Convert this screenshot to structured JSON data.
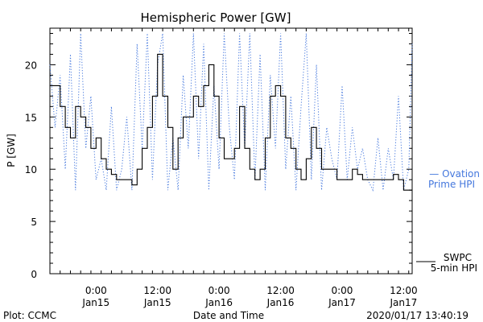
{
  "chart_data": {
    "type": "line",
    "title": "Hemispheric Power [GW]",
    "xlabel": "Date and Time",
    "ylabel": "P [GW]",
    "ylim": [
      0,
      23.5
    ],
    "xlim": [
      "2020-01-14 15:00",
      "2020-01-17 13:40"
    ],
    "yticks": [
      0,
      5,
      10,
      15,
      20
    ],
    "xticks": [
      {
        "x": "2020-01-15 00:00",
        "time": "0:00",
        "date": "Jan15"
      },
      {
        "x": "2020-01-15 12:00",
        "time": "12:00",
        "date": "Jan15"
      },
      {
        "x": "2020-01-16 00:00",
        "time": "0:00",
        "date": "Jan16"
      },
      {
        "x": "2020-01-16 12:00",
        "time": "12:00",
        "date": "Jan16"
      },
      {
        "x": "2020-01-17 00:00",
        "time": "0:00",
        "date": "Jan17"
      },
      {
        "x": "2020-01-17 12:00",
        "time": "12:00",
        "date": "Jan17"
      }
    ],
    "series": [
      {
        "name": "SWPC 5-min HPI",
        "color": "#000000",
        "style": "solid",
        "label_lines": [
          "SWPC",
          "5-min HPI"
        ],
        "x": [
          "2020-01-14 15:00",
          "2020-01-14 16:00",
          "2020-01-14 17:00",
          "2020-01-14 18:00",
          "2020-01-14 19:00",
          "2020-01-14 20:00",
          "2020-01-14 21:00",
          "2020-01-14 22:00",
          "2020-01-14 23:00",
          "2020-01-15 00:00",
          "2020-01-15 01:00",
          "2020-01-15 02:00",
          "2020-01-15 03:00",
          "2020-01-15 04:00",
          "2020-01-15 05:00",
          "2020-01-15 06:00",
          "2020-01-15 07:00",
          "2020-01-15 08:00",
          "2020-01-15 09:00",
          "2020-01-15 10:00",
          "2020-01-15 11:00",
          "2020-01-15 12:00",
          "2020-01-15 13:00",
          "2020-01-15 14:00",
          "2020-01-15 15:00",
          "2020-01-15 16:00",
          "2020-01-15 17:00",
          "2020-01-15 18:00",
          "2020-01-15 19:00",
          "2020-01-15 20:00",
          "2020-01-15 21:00",
          "2020-01-15 22:00",
          "2020-01-15 23:00",
          "2020-01-16 00:00",
          "2020-01-16 01:00",
          "2020-01-16 02:00",
          "2020-01-16 03:00",
          "2020-01-16 04:00",
          "2020-01-16 05:00",
          "2020-01-16 06:00",
          "2020-01-16 07:00",
          "2020-01-16 08:00",
          "2020-01-16 09:00",
          "2020-01-16 10:00",
          "2020-01-16 11:00",
          "2020-01-16 12:00",
          "2020-01-16 13:00",
          "2020-01-16 14:00",
          "2020-01-16 15:00",
          "2020-01-16 16:00",
          "2020-01-16 17:00",
          "2020-01-16 18:00",
          "2020-01-16 19:00",
          "2020-01-16 20:00",
          "2020-01-16 21:00",
          "2020-01-16 22:00",
          "2020-01-16 23:00",
          "2020-01-17 00:00",
          "2020-01-17 01:00",
          "2020-01-17 02:00",
          "2020-01-17 03:00",
          "2020-01-17 04:00",
          "2020-01-17 05:00",
          "2020-01-17 06:00",
          "2020-01-17 07:00",
          "2020-01-17 08:00",
          "2020-01-17 09:00",
          "2020-01-17 10:00",
          "2020-01-17 11:00",
          "2020-01-17 12:00",
          "2020-01-17 13:00",
          "2020-01-17 13:40"
        ],
        "values": [
          18,
          18,
          16,
          14,
          13,
          16,
          15,
          14,
          12,
          13,
          11,
          10,
          9.5,
          9,
          9,
          9,
          8.5,
          10,
          12,
          14,
          17,
          21,
          17,
          14,
          10,
          13,
          15,
          15,
          17,
          16,
          18,
          20,
          17,
          13,
          11,
          11,
          12,
          16,
          12,
          10,
          9,
          10,
          13,
          17,
          18,
          17,
          13,
          12,
          10,
          9,
          11,
          14,
          12,
          10,
          10,
          10,
          9,
          9,
          9,
          10,
          9.5,
          9,
          9,
          9,
          9,
          9,
          9,
          9.5,
          9,
          8,
          8,
          8
        ]
      },
      {
        "name": "Ovation Prime HPI",
        "color": "#4477dd",
        "style": "dotted",
        "label_lines": [
          "— Ovation",
          "Prime HPI"
        ],
        "x": [
          "2020-01-14 15:00",
          "2020-01-14 16:00",
          "2020-01-14 17:00",
          "2020-01-14 18:00",
          "2020-01-14 19:00",
          "2020-01-14 20:00",
          "2020-01-14 21:00",
          "2020-01-14 22:00",
          "2020-01-14 23:00",
          "2020-01-15 00:00",
          "2020-01-15 01:00",
          "2020-01-15 02:00",
          "2020-01-15 03:00",
          "2020-01-15 04:00",
          "2020-01-15 05:00",
          "2020-01-15 06:00",
          "2020-01-15 07:00",
          "2020-01-15 08:00",
          "2020-01-15 09:00",
          "2020-01-15 10:00",
          "2020-01-15 11:00",
          "2020-01-15 12:00",
          "2020-01-15 13:00",
          "2020-01-15 14:00",
          "2020-01-15 15:00",
          "2020-01-15 16:00",
          "2020-01-15 17:00",
          "2020-01-15 18:00",
          "2020-01-15 19:00",
          "2020-01-15 20:00",
          "2020-01-15 21:00",
          "2020-01-15 22:00",
          "2020-01-15 23:00",
          "2020-01-16 00:00",
          "2020-01-16 01:00",
          "2020-01-16 02:00",
          "2020-01-16 03:00",
          "2020-01-16 04:00",
          "2020-01-16 05:00",
          "2020-01-16 06:00",
          "2020-01-16 07:00",
          "2020-01-16 08:00",
          "2020-01-16 09:00",
          "2020-01-16 10:00",
          "2020-01-16 11:00",
          "2020-01-16 12:00",
          "2020-01-16 13:00",
          "2020-01-16 14:00",
          "2020-01-16 15:00",
          "2020-01-16 16:00",
          "2020-01-16 17:00",
          "2020-01-16 18:00",
          "2020-01-16 19:00",
          "2020-01-16 20:00",
          "2020-01-16 21:00",
          "2020-01-16 22:00",
          "2020-01-16 23:00",
          "2020-01-17 00:00",
          "2020-01-17 01:00",
          "2020-01-17 02:00",
          "2020-01-17 03:00",
          "2020-01-17 04:00",
          "2020-01-17 05:00",
          "2020-01-17 06:00",
          "2020-01-17 07:00",
          "2020-01-17 08:00",
          "2020-01-17 09:00",
          "2020-01-17 10:00",
          "2020-01-17 11:00",
          "2020-01-17 12:00",
          "2020-01-17 13:00",
          "2020-01-17 13:40"
        ],
        "values": [
          20,
          14,
          19,
          10,
          21,
          8,
          23,
          12,
          17,
          9,
          11,
          8,
          16,
          8,
          10,
          15,
          8,
          22,
          12,
          23,
          9,
          20,
          23,
          8,
          13,
          8,
          19,
          12,
          23,
          11,
          22,
          8,
          18,
          10,
          23,
          14,
          9,
          23,
          12,
          23,
          9,
          21,
          8,
          19,
          12,
          23,
          10,
          17,
          8,
          16,
          23,
          9,
          20,
          8,
          14,
          11,
          9,
          18,
          9,
          14,
          10,
          12,
          9,
          8,
          13,
          8,
          12,
          9,
          17,
          8,
          10,
          22
        ]
      }
    ]
  },
  "footer": {
    "plot_credit": "Plot: CCMC",
    "x_axis_title": "Date and Time",
    "timestamp": "2020/01/17 13:40:19"
  }
}
